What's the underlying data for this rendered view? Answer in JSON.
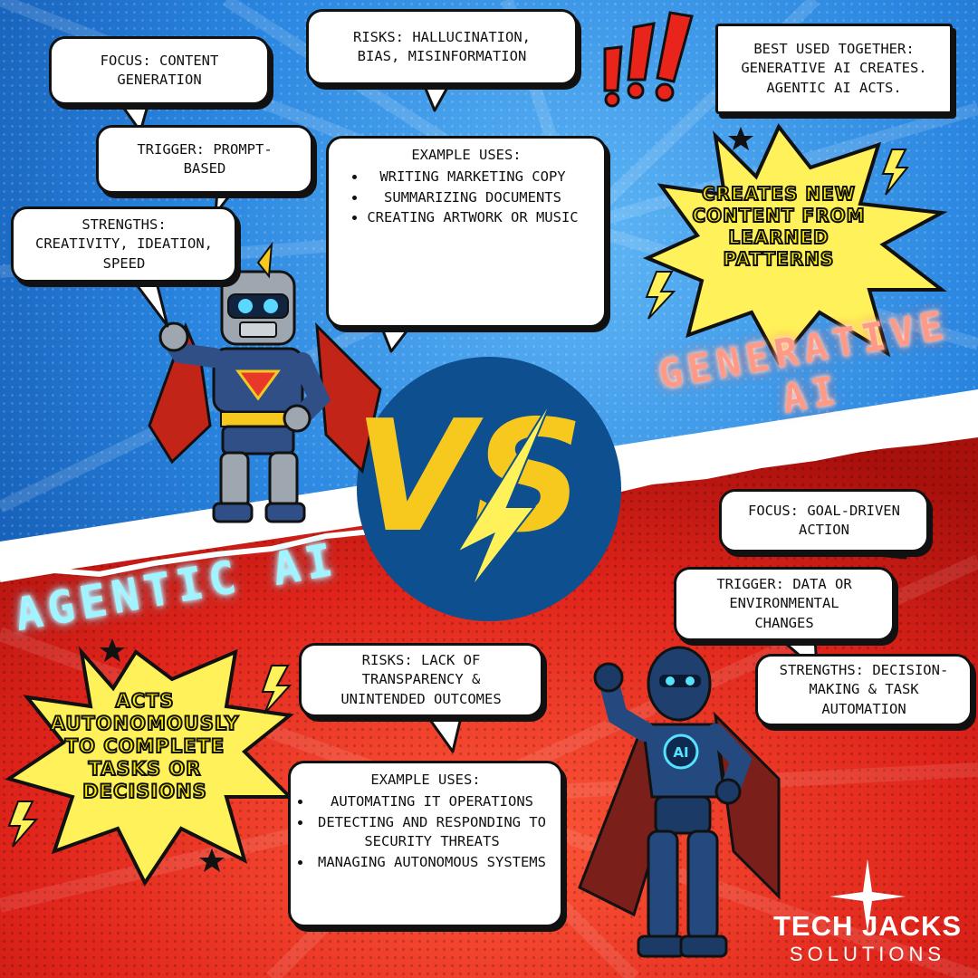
{
  "colors": {
    "top_blue": "#1f74d6",
    "bottom_red": "#e0241b",
    "vs_circle": "#0d4f8f",
    "vs_yellow": "#f7c81e",
    "burst_yellow": "#fff15a",
    "neon_cyan": "#9ff4ff",
    "neon_salmon": "#ff9a86"
  },
  "generative": {
    "title_line1": "GENERATIVE",
    "title_line2": "AI",
    "focus": "FOCUS: CONTENT\nGENERATION",
    "risks": "RISKS: HALLUCINATION,\nBIAS, MISINFORMATION",
    "trigger": "TRIGGER: PROMPT-\nBASED",
    "strengths": "STRENGTHS:\nCREATIVITY, IDEATION,\nSPEED",
    "examples_title": "EXAMPLE USES:",
    "examples": [
      "WRITING MARKETING COPY",
      "SUMMARIZING DOCUMENTS",
      "CREATING ARTWORK OR MUSIC"
    ],
    "burst": "CREATES NEW\nCONTENT FROM\nLEARNED\nPATTERNS",
    "best_used": "BEST USED TOGETHER:\nGENERATIVE AI CREATES.\nAGENTIC AI ACTS."
  },
  "agentic": {
    "title": "AGENTIC AI",
    "focus": "FOCUS: GOAL-DRIVEN\nACTION",
    "trigger": "TRIGGER: DATA OR\nENVIRONMENTAL\nCHANGES",
    "strengths": "STRENGTHS: DECISION-\nMAKING & TASK\nAUTOMATION",
    "risks": "RISKS: LACK OF\nTRANSPARENCY &\nUNINTENDED OUTCOMES",
    "examples_title": "EXAMPLE USES:",
    "examples": [
      "AUTOMATING IT OPERATIONS",
      "DETECTING AND RESPONDING TO SECURITY THREATS",
      "MANAGING AUTONOMOUS SYSTEMS"
    ],
    "burst": "ACTS\nAUTONOMOUSLY\nTO COMPLETE\nTASKS OR\nDECISIONS",
    "robot_badge": "AI"
  },
  "vs_text": "VS",
  "exclaim_icon": "exclamation-marks-icon",
  "lightning_icon": "lightning-bolt-icon",
  "star_icon": "star-icon",
  "logo": {
    "line1": "TECH JACKS",
    "line2": "SOLUTIONS"
  }
}
